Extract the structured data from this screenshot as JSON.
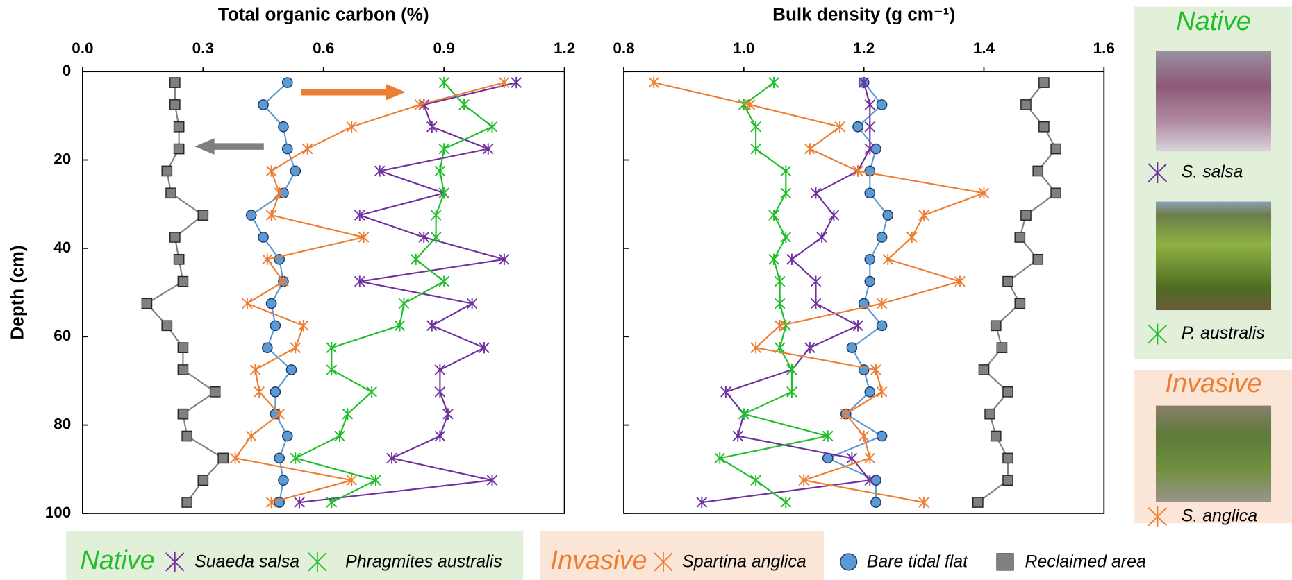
{
  "chart_data": [
    {
      "type": "line",
      "title": "Total organic carbon (%)",
      "ylabel": "Depth (cm)",
      "xlim": [
        0,
        1.2
      ],
      "xticks": [
        {
          "value": 0,
          "label": "0.0"
        },
        0.3,
        0.6,
        0.9,
        1.2
      ],
      "ylim": [
        0,
        100
      ],
      "yticks": [
        0,
        20,
        40,
        60,
        80,
        100
      ],
      "y_inverted": true,
      "y": [
        2.5,
        7.5,
        12.5,
        17.5,
        22.5,
        27.5,
        32.5,
        37.5,
        42.5,
        47.5,
        52.5,
        57.5,
        62.5,
        67.5,
        72.5,
        77.5,
        82.5,
        87.5,
        92.5,
        97.5
      ],
      "series": [
        {
          "name": "Suaeda salsa",
          "color": "#7030a0",
          "marker": "asterisk",
          "values": [
            1.08,
            0.85,
            0.87,
            1.01,
            0.74,
            0.9,
            0.69,
            0.85,
            1.05,
            0.69,
            0.97,
            0.87,
            1.0,
            0.89,
            0.89,
            0.91,
            0.89,
            0.77,
            1.02,
            0.54
          ]
        },
        {
          "name": "Phragmites australis",
          "color": "#1fbf2a",
          "marker": "asterisk",
          "values": [
            0.9,
            0.95,
            1.02,
            0.9,
            0.89,
            0.9,
            0.88,
            0.88,
            0.83,
            0.9,
            0.8,
            0.79,
            0.62,
            0.62,
            0.72,
            0.66,
            0.64,
            0.53,
            0.73,
            0.62
          ]
        },
        {
          "name": "Spartina anglica",
          "color": "#ed7d31",
          "marker": "asterisk",
          "values": [
            1.05,
            0.84,
            0.67,
            0.56,
            0.47,
            0.49,
            0.47,
            0.7,
            0.46,
            0.5,
            0.41,
            0.55,
            0.53,
            0.43,
            0.44,
            0.49,
            0.42,
            0.38,
            0.67,
            0.47
          ]
        },
        {
          "name": "Bare tidal flat",
          "color": "#5b9bd5",
          "marker": "circle",
          "values": [
            0.51,
            0.45,
            0.5,
            0.51,
            0.53,
            0.5,
            0.42,
            0.45,
            0.49,
            0.5,
            0.47,
            0.48,
            0.46,
            0.52,
            0.48,
            0.48,
            0.51,
            0.49,
            0.5,
            0.49
          ]
        },
        {
          "name": "Reclaimed area",
          "color": "#808080",
          "marker": "square",
          "values": [
            0.23,
            0.23,
            0.24,
            0.24,
            0.21,
            0.22,
            0.3,
            0.23,
            0.24,
            0.25,
            0.16,
            0.21,
            0.25,
            0.25,
            0.33,
            0.25,
            0.26,
            0.35,
            0.3,
            0.26
          ]
        }
      ]
    },
    {
      "type": "line",
      "title": "Bulk density (g cm⁻¹)",
      "xlim": [
        0.8,
        1.6
      ],
      "xticks": [
        0.8,
        {
          "value": 1,
          "label": "1.0"
        },
        1.2,
        1.4,
        1.6
      ],
      "ylim": [
        0,
        100
      ],
      "yticks": [
        0,
        20,
        40,
        60,
        80,
        100
      ],
      "y_inverted": true,
      "y": [
        2.5,
        7.5,
        12.5,
        17.5,
        22.5,
        27.5,
        32.5,
        37.5,
        42.5,
        47.5,
        52.5,
        57.5,
        62.5,
        67.5,
        72.5,
        77.5,
        82.5,
        87.5,
        92.5,
        97.5
      ],
      "series": [
        {
          "color": "#7030a0",
          "marker": "asterisk",
          "values": [
            1.2,
            1.21,
            1.21,
            1.21,
            1.19,
            1.12,
            1.15,
            1.13,
            1.08,
            1.12,
            1.12,
            1.19,
            1.11,
            1.08,
            0.97,
            1.0,
            0.99,
            1.18,
            1.21,
            0.93
          ]
        },
        {
          "color": "#1fbf2a",
          "marker": "asterisk",
          "values": [
            1.05,
            1.0,
            1.02,
            1.02,
            1.07,
            1.07,
            1.05,
            1.07,
            1.05,
            1.06,
            1.06,
            1.07,
            1.06,
            1.08,
            1.08,
            1.0,
            1.14,
            0.96,
            1.02,
            1.07
          ]
        },
        {
          "color": "#ed7d31",
          "marker": "asterisk",
          "values": [
            0.85,
            1.01,
            1.16,
            1.11,
            1.19,
            1.4,
            1.3,
            1.28,
            1.24,
            1.36,
            1.23,
            1.06,
            1.02,
            1.22,
            1.23,
            1.17,
            1.2,
            1.21,
            1.1,
            1.3
          ]
        },
        {
          "color": "#5b9bd5",
          "marker": "circle",
          "values": [
            1.2,
            1.23,
            1.19,
            1.22,
            1.21,
            1.21,
            1.24,
            1.23,
            1.21,
            1.21,
            1.2,
            1.23,
            1.18,
            1.2,
            1.21,
            1.17,
            1.23,
            1.14,
            1.22,
            1.22
          ]
        },
        {
          "color": "#808080",
          "marker": "square",
          "values": [
            1.5,
            1.47,
            1.5,
            1.52,
            1.49,
            1.52,
            1.47,
            1.46,
            1.49,
            1.44,
            1.46,
            1.42,
            1.43,
            1.4,
            1.44,
            1.41,
            1.42,
            1.44,
            1.44,
            1.39
          ]
        }
      ]
    }
  ],
  "legend_groups": [
    "Native",
    "Invasive"
  ],
  "side_panel": {
    "native_title": "Native",
    "invasive_title": "Invasive",
    "labels": [
      "S. salsa",
      "P. australis",
      "S. anglica"
    ]
  }
}
